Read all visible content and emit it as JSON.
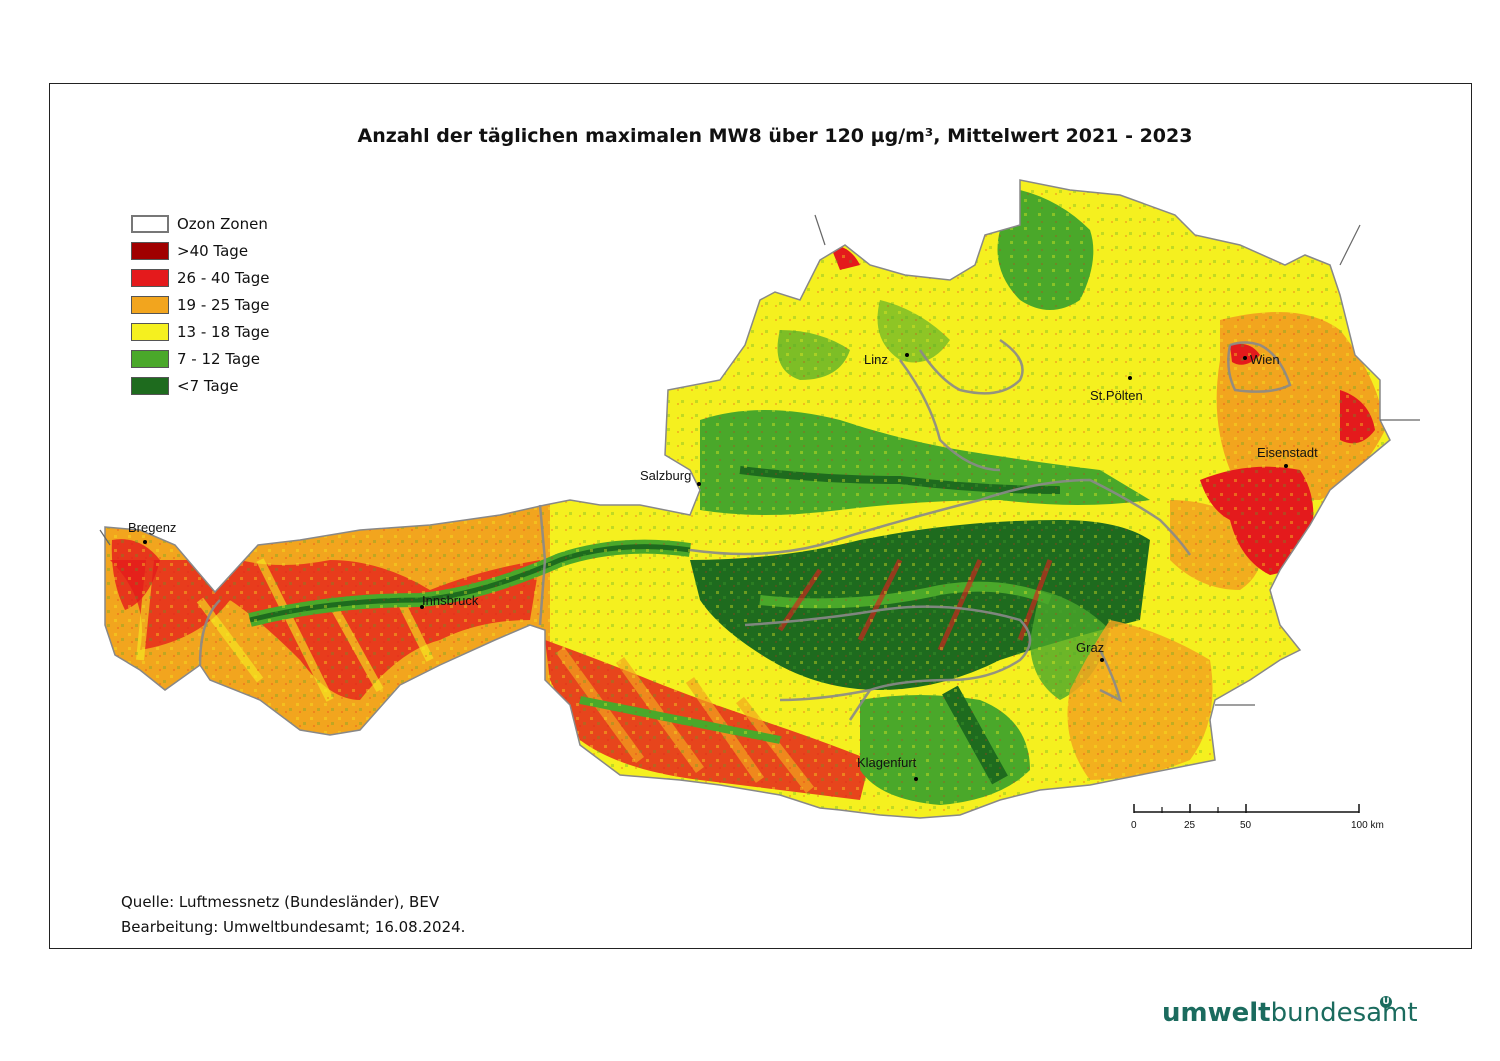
{
  "map": {
    "title": "Anzahl der täglichen maximalen MW8 über 120 µg/m³, Mittelwert 2021 - 2023",
    "legend": [
      {
        "label": "Ozon Zonen",
        "color": "#ffffff",
        "border": "#777777"
      },
      {
        "label": ">40 Tage",
        "color": "#a00000"
      },
      {
        "label": "26 - 40 Tage",
        "color": "#e41a1c"
      },
      {
        "label": "19 - 25 Tage",
        "color": "#f2a51e"
      },
      {
        "label": "13 - 18 Tage",
        "color": "#f5f01f"
      },
      {
        "label": "7 - 12 Tage",
        "color": "#4aa82a"
      },
      {
        "label": "<7 Tage",
        "color": "#1e6b1e"
      }
    ],
    "cities": [
      {
        "name": "Bregenz"
      },
      {
        "name": "Innsbruck"
      },
      {
        "name": "Salzburg"
      },
      {
        "name": "Linz"
      },
      {
        "name": "St.Pölten"
      },
      {
        "name": "Wien"
      },
      {
        "name": "Eisenstadt"
      },
      {
        "name": "Graz"
      },
      {
        "name": "Klagenfurt"
      }
    ],
    "scale": {
      "ticks": [
        "0",
        "25",
        "50",
        "100 km"
      ]
    },
    "source_line1": "Quelle: Luftmessnetz (Bundesländer), BEV",
    "source_line2": "Bearbeitung: Umweltbundesamt; 16.08.2024."
  },
  "logo": {
    "part1": "umwelt",
    "part2": "bundesamt",
    "mark": "U"
  }
}
